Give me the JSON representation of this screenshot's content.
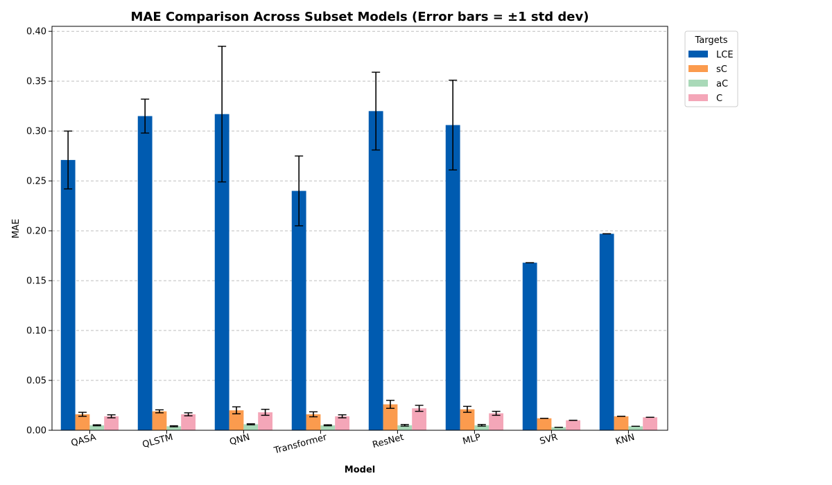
{
  "chart_data": {
    "type": "bar",
    "title": "MAE Comparison Across Subset Models (Error bars = ±1 std dev)",
    "xlabel": "Model",
    "ylabel": "MAE",
    "ylim": [
      0,
      0.405
    ],
    "yticks": [
      "0.00",
      "0.05",
      "0.10",
      "0.15",
      "0.20",
      "0.25",
      "0.30",
      "0.35",
      "0.40"
    ],
    "ytick_values": [
      0,
      0.05,
      0.1,
      0.15,
      0.2,
      0.25,
      0.3,
      0.35,
      0.4
    ],
    "grid": "y-dashed",
    "legend": {
      "title": "Targets",
      "placement": "outside-top-right"
    },
    "categories": [
      "QASA",
      "QLSTM",
      "QNN",
      "Transformer",
      "ResNet",
      "MLP",
      "SVR",
      "KNN"
    ],
    "series": [
      {
        "name": "LCE",
        "color": "#005bb0",
        "values": [
          0.271,
          0.315,
          0.317,
          0.24,
          0.32,
          0.306,
          0.168,
          0.197
        ],
        "errors": [
          0.029,
          0.017,
          0.068,
          0.035,
          0.039,
          0.045,
          0.0,
          0.0
        ]
      },
      {
        "name": "sC",
        "color": "#fb9b4e",
        "values": [
          0.016,
          0.019,
          0.02,
          0.016,
          0.026,
          0.021,
          0.012,
          0.014
        ],
        "errors": [
          0.002,
          0.0015,
          0.0035,
          0.0025,
          0.004,
          0.003,
          0.0,
          0.0
        ]
      },
      {
        "name": "aC",
        "color": "#a9d9b8",
        "values": [
          0.005,
          0.004,
          0.006,
          0.005,
          0.005,
          0.005,
          0.003,
          0.004
        ],
        "errors": [
          0.0005,
          0.0005,
          0.0005,
          0.0005,
          0.0008,
          0.0008,
          0.0,
          0.0
        ]
      },
      {
        "name": "C",
        "color": "#f4a6b8",
        "values": [
          0.014,
          0.016,
          0.018,
          0.014,
          0.022,
          0.017,
          0.01,
          0.013
        ],
        "errors": [
          0.0015,
          0.0015,
          0.003,
          0.0015,
          0.003,
          0.002,
          0.0,
          0.0
        ]
      }
    ]
  }
}
